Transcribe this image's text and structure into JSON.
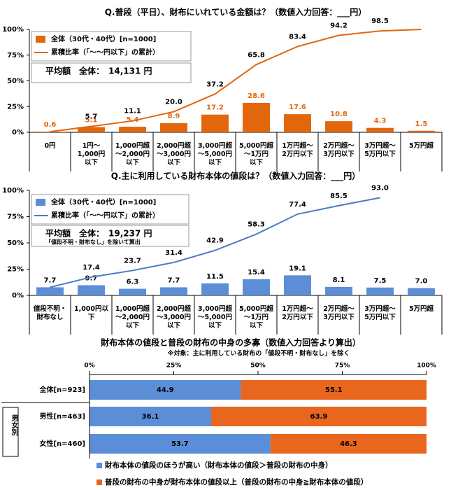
{
  "chart_data": [
    {
      "type": "combo",
      "title": "Q.普段（平日）、財布にいれている金額は？（数値入力回答：___円）",
      "categories": [
        "0円",
        "1円～\n1,000円\n以下",
        "1,000円超\n～2,000円\n以下",
        "2,000円超\n～3,000円\n以下",
        "3,000円超\n～5,000円\n以下",
        "5,000円超\n～1万円\n以下",
        "1万円超～\n2万円以下",
        "2万円超～\n3万円以下",
        "3万円超～\n5万円以下",
        "5万円超"
      ],
      "series": [
        {
          "name": "全体（30代・40代）[n=1000]",
          "type": "bar",
          "color": "#e2670c",
          "values": [
            0.6,
            5.1,
            5.4,
            8.9,
            17.2,
            28.6,
            17.6,
            10.8,
            4.3,
            1.5
          ]
        },
        {
          "name": "累積比率（「～～円以下」の累計）",
          "type": "line",
          "color": "#e2670c",
          "values": [
            0.6,
            5.7,
            11.1,
            20.0,
            37.2,
            65.8,
            83.4,
            94.2,
            98.5,
            100
          ],
          "value_labels": [
            null,
            "5.7",
            "11.1",
            "20.0",
            "37.2",
            "65.8",
            "83.4",
            "94.2",
            "98.5",
            null
          ]
        }
      ],
      "annotations": [
        "平均額　全体：　14,131 円"
      ],
      "ylim": [
        0,
        100
      ],
      "yticks": [
        {
          "value": 0,
          "label": "0%"
        },
        {
          "value": 25,
          "label": "25%"
        },
        {
          "value": 50,
          "label": "50%"
        },
        {
          "value": 75,
          "label": "75%"
        },
        {
          "value": 100,
          "label": "100%"
        }
      ]
    },
    {
      "type": "combo",
      "title": "Q.主に利用している財布本体の値段は？（数値入力回答：___円）",
      "categories": [
        "値段不明・\n財布なし",
        "1,000円以\n下",
        "1,000円超\n～2,000円\n以下",
        "2,000円超\n～3,000円\n以下",
        "3,000円超\n～5,000円\n以下",
        "5,000円超\n～1万円\n以下",
        "1万円超～\n2万円以下",
        "2万円超～\n3万円以下",
        "3万円超～\n5万円以下",
        "5万円超"
      ],
      "series": [
        {
          "name": "全体（30代・40代）[n=1000]",
          "type": "bar",
          "color": "#5b8ed6",
          "values": [
            7.7,
            9.7,
            6.3,
            7.7,
            11.5,
            15.4,
            19.1,
            8.1,
            7.5,
            7.0
          ],
          "value_labels": [
            "7.7",
            "9.7",
            "6.3",
            "7.7",
            "11.5",
            "15.4",
            "19.1",
            "8.1",
            "7.5",
            "7.0"
          ]
        },
        {
          "name": "累積比率（「～～円以下」の累計）",
          "type": "line",
          "color": "#4a7cc4",
          "values": [
            7.7,
            17.4,
            23.7,
            31.4,
            42.9,
            58.3,
            77.4,
            85.5,
            93.0,
            null
          ],
          "value_labels": [
            null,
            "17.4",
            "23.7",
            "31.4",
            "42.9",
            "58.3",
            "77.4",
            "85.5",
            "93.0",
            null
          ]
        }
      ],
      "annotations": [
        "平均額　全体：　19,237 円",
        "「値段不明・財布なし」を除いて算出"
      ],
      "ylim": [
        0,
        100
      ],
      "yticks": [
        {
          "value": 0,
          "label": "0%"
        },
        {
          "value": 25,
          "label": "25%"
        },
        {
          "value": 50,
          "label": "50%"
        },
        {
          "value": 75,
          "label": "75%"
        },
        {
          "value": 100,
          "label": "100%"
        }
      ]
    },
    {
      "type": "stacked-bar",
      "title": "財布本体の値段と普段の財布の中身の多寡（数値入力回答より算出）",
      "subtitle": "※対象：主に利用している財布の「値段不明・財布なし」を除く",
      "categories": [
        "全体[n=923]",
        "男性[n=463]",
        "女性[n=460]"
      ],
      "group_label": "男女別",
      "series": [
        {
          "name": "財布本体の値段のほうが高い（財布本体の値段＞普段の財布の中身）",
          "color": "#5b8ed6",
          "values": [
            44.9,
            36.1,
            53.7
          ]
        },
        {
          "name": "普段の財布の中身が財布本体の値段以上（普段の財布の中身≧財布本体の値段）",
          "color": "#e8661e",
          "values": [
            55.1,
            63.9,
            46.3
          ]
        }
      ],
      "xlim": [
        0,
        100
      ],
      "xticks": [
        {
          "value": 0,
          "label": "0%"
        },
        {
          "value": 25,
          "label": "25%"
        },
        {
          "value": 50,
          "label": "50%"
        },
        {
          "value": 75,
          "label": "75%"
        },
        {
          "value": 100,
          "label": "100%"
        }
      ]
    }
  ]
}
